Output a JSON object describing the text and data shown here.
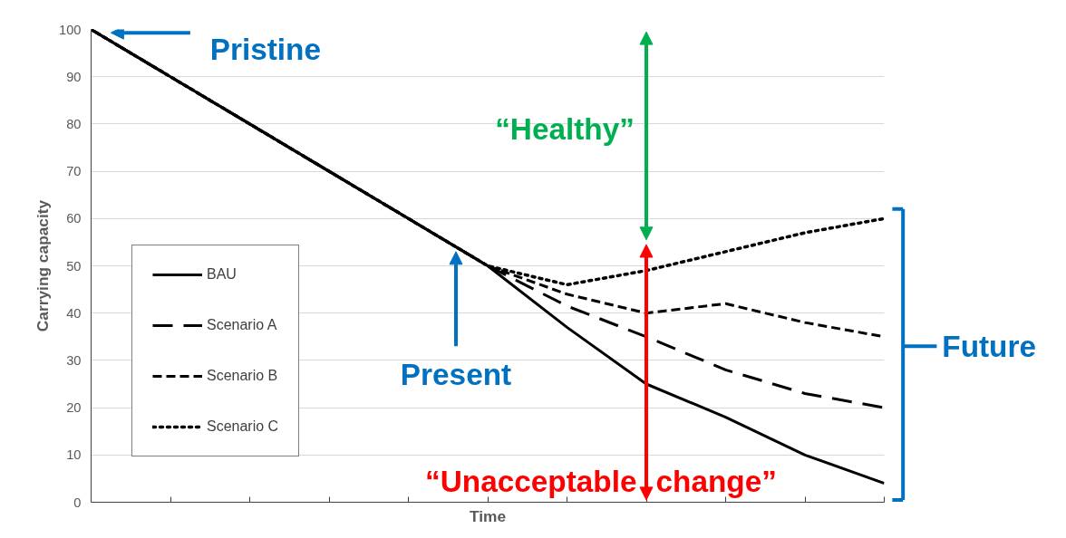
{
  "chart_data": {
    "type": "line",
    "xlabel": "Time",
    "ylabel": "Carrying capacity",
    "categories": [
      null,
      null,
      null,
      null,
      null,
      null,
      null,
      null,
      null,
      null,
      null
    ],
    "ylim": [
      0,
      100
    ],
    "yticks": [
      0,
      10,
      20,
      30,
      40,
      50,
      60,
      70,
      80,
      90,
      100
    ],
    "tick_labels": "y",
    "grid": "y",
    "legend": "left",
    "series": [
      {
        "name": "BAU",
        "color": "#000000",
        "line_style": "solid",
        "values": [
          100,
          90,
          80,
          70,
          60,
          50,
          37,
          25,
          18,
          10,
          4
        ]
      },
      {
        "name": "Scenario A",
        "color": "#000000",
        "line_style": "longdash",
        "values": [
          100,
          90,
          80,
          70,
          60,
          50,
          41.5,
          35,
          28,
          23,
          20
        ]
      },
      {
        "name": "Scenario B",
        "color": "#000000",
        "line_style": "dashed",
        "values": [
          100,
          90,
          80,
          70,
          60,
          50,
          44,
          40,
          42,
          38,
          35
        ]
      },
      {
        "name": "Scenario C",
        "color": "#000000",
        "line_style": "dotted",
        "values": [
          100,
          90,
          80,
          70,
          60,
          50,
          46,
          49,
          53,
          57,
          60
        ]
      }
    ],
    "annotations": [
      "Pristine",
      "“Healthy”",
      "Present",
      "“Unacceptable change”",
      "Future"
    ]
  }
}
